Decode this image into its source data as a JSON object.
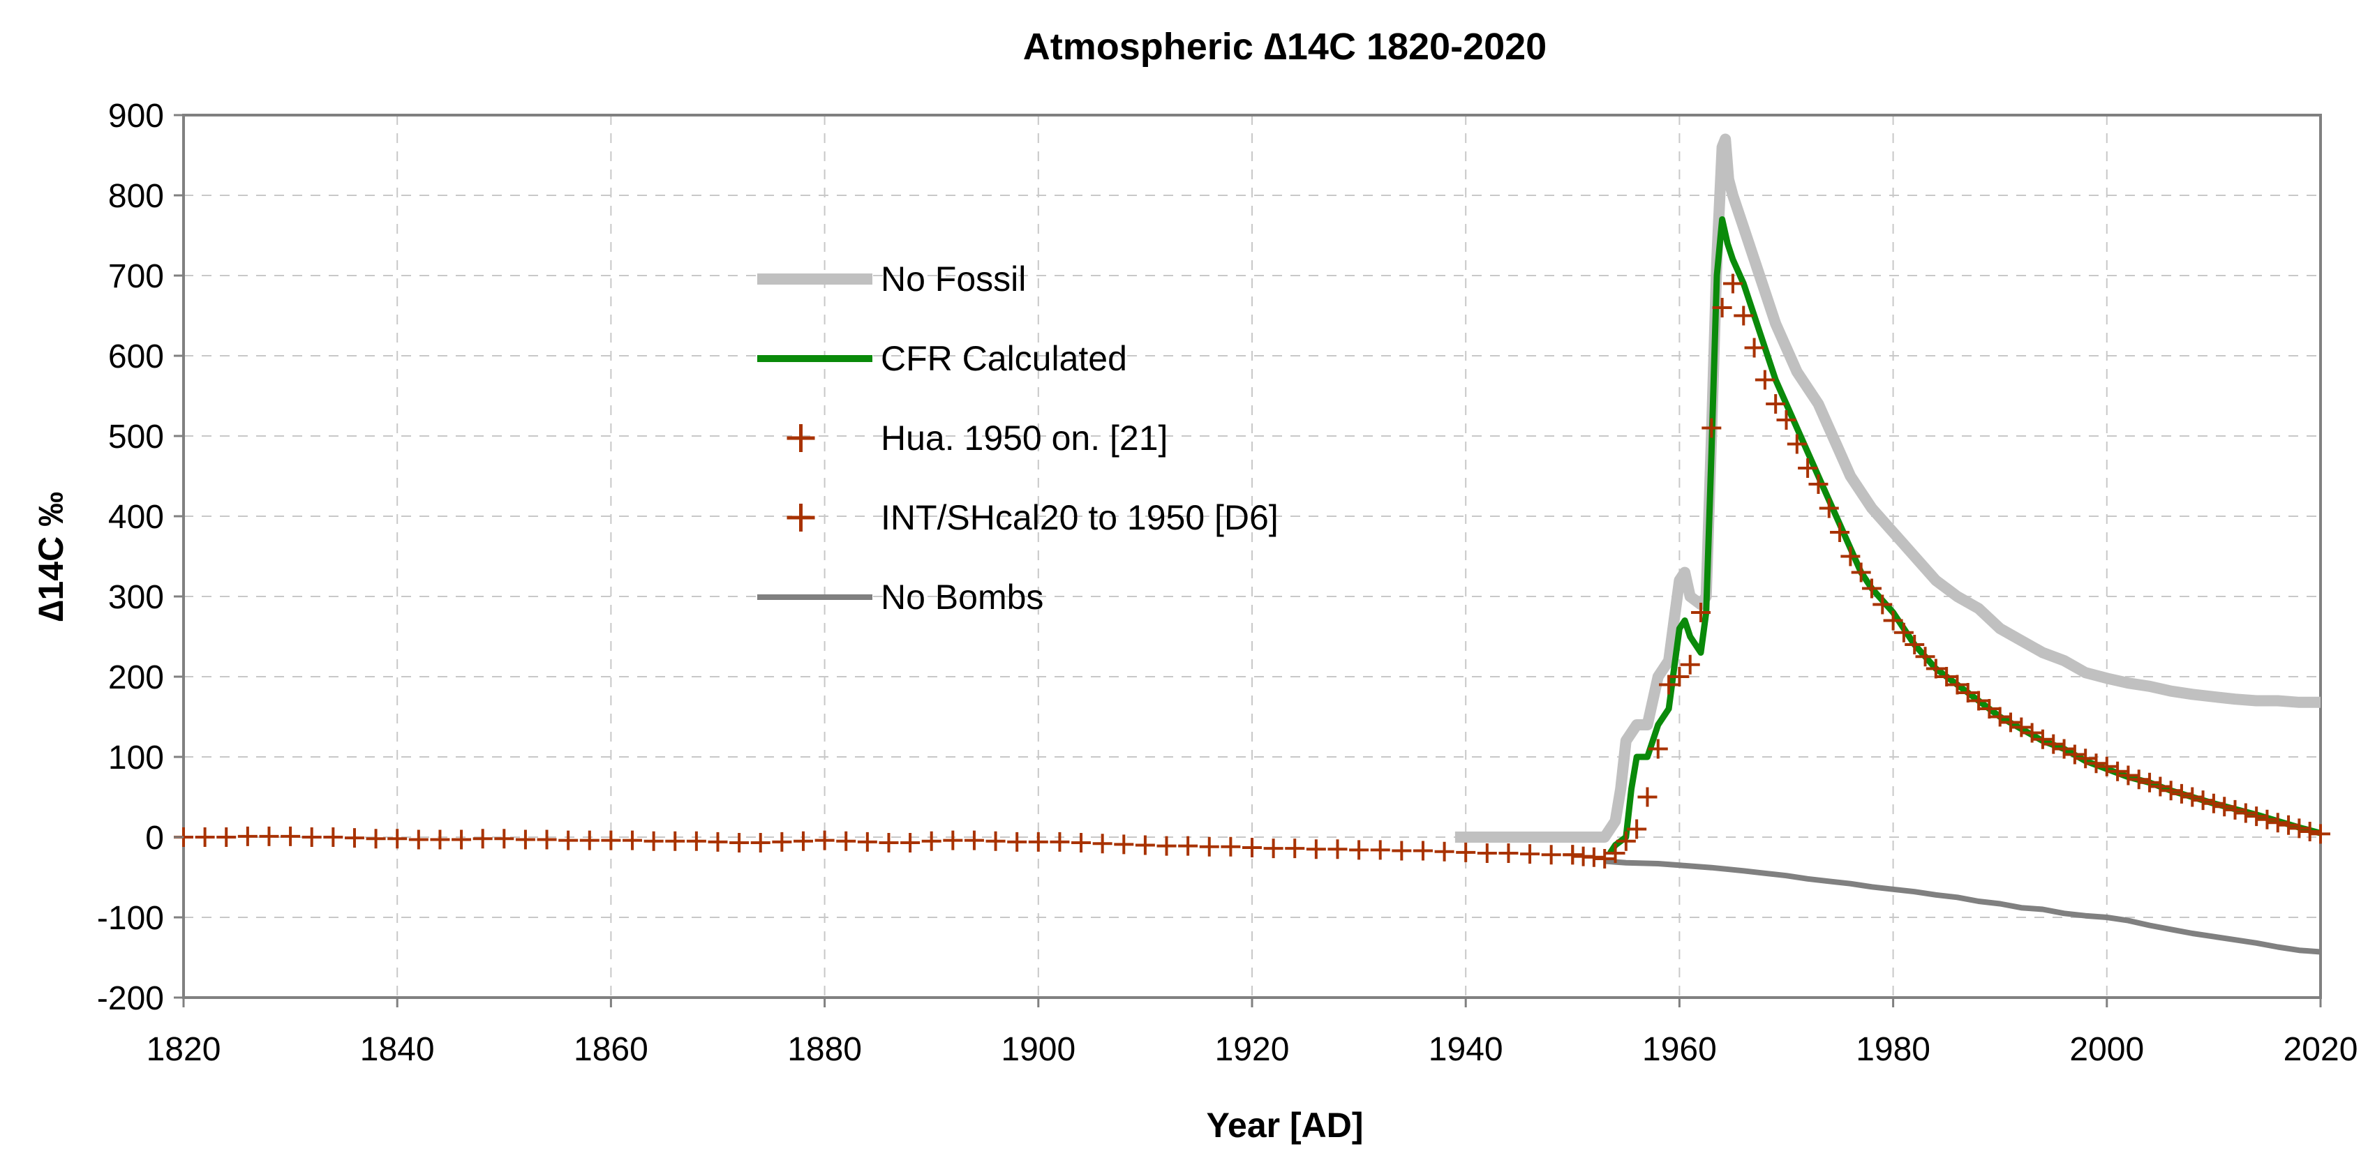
{
  "chart_data": {
    "type": "line",
    "title": "Atmospheric ∆14C 1820-2020",
    "xlabel": "Year [AD]",
    "ylabel": "∆14C ‰",
    "xlim": [
      1820,
      2020
    ],
    "ylim": [
      -200,
      900
    ],
    "x_ticks": [
      1820,
      1840,
      1860,
      1880,
      1900,
      1920,
      1940,
      1960,
      1980,
      2000,
      2020
    ],
    "y_ticks": [
      -200,
      -100,
      0,
      100,
      200,
      300,
      400,
      500,
      600,
      700,
      800,
      900
    ],
    "grid": "dashed",
    "legend_position": "upper-left-center",
    "series": [
      {
        "name": "No Fossil",
        "style": "line",
        "color": "#c0c0c0",
        "points": [
          [
            1939,
            0
          ],
          [
            1953,
            0
          ],
          [
            1954,
            20
          ],
          [
            1954.5,
            60
          ],
          [
            1955,
            120
          ],
          [
            1956,
            140
          ],
          [
            1957,
            140
          ],
          [
            1958,
            200
          ],
          [
            1959,
            220
          ],
          [
            1959.5,
            270
          ],
          [
            1960,
            320
          ],
          [
            1960.5,
            330
          ],
          [
            1961,
            300
          ],
          [
            1962,
            290
          ],
          [
            1962.5,
            300
          ],
          [
            1963,
            500
          ],
          [
            1963.5,
            720
          ],
          [
            1964,
            860
          ],
          [
            1964.3,
            870
          ],
          [
            1964.6,
            820
          ],
          [
            1965,
            800
          ],
          [
            1966,
            760
          ],
          [
            1967,
            720
          ],
          [
            1968,
            680
          ],
          [
            1969,
            640
          ],
          [
            1970,
            610
          ],
          [
            1971,
            580
          ],
          [
            1972,
            560
          ],
          [
            1973,
            540
          ],
          [
            1974,
            510
          ],
          [
            1975,
            480
          ],
          [
            1976,
            450
          ],
          [
            1977,
            430
          ],
          [
            1978,
            410
          ],
          [
            1980,
            380
          ],
          [
            1982,
            350
          ],
          [
            1984,
            320
          ],
          [
            1986,
            300
          ],
          [
            1988,
            285
          ],
          [
            1990,
            260
          ],
          [
            1992,
            245
          ],
          [
            1994,
            230
          ],
          [
            1996,
            220
          ],
          [
            1998,
            205
          ],
          [
            2000,
            198
          ],
          [
            2002,
            192
          ],
          [
            2004,
            188
          ],
          [
            2006,
            182
          ],
          [
            2008,
            178
          ],
          [
            2010,
            175
          ],
          [
            2012,
            172
          ],
          [
            2014,
            170
          ],
          [
            2016,
            170
          ],
          [
            2018,
            168
          ],
          [
            2020,
            168
          ]
        ]
      },
      {
        "name": "CFR Calculated",
        "style": "line",
        "color": "#0a8a0a",
        "points": [
          [
            1953.5,
            -20
          ],
          [
            1954,
            -10
          ],
          [
            1955,
            0
          ],
          [
            1955.5,
            60
          ],
          [
            1956,
            100
          ],
          [
            1957,
            100
          ],
          [
            1958,
            140
          ],
          [
            1959,
            160
          ],
          [
            1959.5,
            210
          ],
          [
            1960,
            260
          ],
          [
            1960.5,
            270
          ],
          [
            1961,
            250
          ],
          [
            1962,
            230
          ],
          [
            1962.5,
            280
          ],
          [
            1963,
            480
          ],
          [
            1963.5,
            700
          ],
          [
            1964,
            770
          ],
          [
            1964.5,
            740
          ],
          [
            1965,
            720
          ],
          [
            1966,
            690
          ],
          [
            1967,
            650
          ],
          [
            1968,
            610
          ],
          [
            1969,
            570
          ],
          [
            1970,
            540
          ],
          [
            1971,
            510
          ],
          [
            1972,
            480
          ],
          [
            1973,
            450
          ],
          [
            1974,
            420
          ],
          [
            1975,
            390
          ],
          [
            1976,
            360
          ],
          [
            1977,
            330
          ],
          [
            1978,
            310
          ],
          [
            1980,
            280
          ],
          [
            1982,
            240
          ],
          [
            1984,
            210
          ],
          [
            1986,
            190
          ],
          [
            1988,
            170
          ],
          [
            1990,
            150
          ],
          [
            1992,
            135
          ],
          [
            1994,
            120
          ],
          [
            1996,
            110
          ],
          [
            1998,
            95
          ],
          [
            2000,
            85
          ],
          [
            2002,
            75
          ],
          [
            2004,
            68
          ],
          [
            2006,
            58
          ],
          [
            2008,
            50
          ],
          [
            2010,
            42
          ],
          [
            2012,
            35
          ],
          [
            2014,
            28
          ],
          [
            2016,
            20
          ],
          [
            2018,
            12
          ],
          [
            2020,
            5
          ]
        ]
      },
      {
        "name": "Hua. 1950 on. [21]",
        "style": "markers",
        "marker": "+",
        "color": "#a83200",
        "points": [
          [
            1950,
            -22
          ],
          [
            1951,
            -24
          ],
          [
            1952,
            -25
          ],
          [
            1953,
            -27
          ],
          [
            1954,
            -20
          ],
          [
            1955,
            -5
          ],
          [
            1956,
            10
          ],
          [
            1957,
            50
          ],
          [
            1958,
            110
          ],
          [
            1959,
            190
          ],
          [
            1960,
            200
          ],
          [
            1961,
            215
          ],
          [
            1962,
            280
          ],
          [
            1963,
            510
          ],
          [
            1964,
            660
          ],
          [
            1965,
            690
          ],
          [
            1966,
            650
          ],
          [
            1967,
            610
          ],
          [
            1968,
            570
          ],
          [
            1969,
            540
          ],
          [
            1970,
            520
          ],
          [
            1971,
            490
          ],
          [
            1972,
            460
          ],
          [
            1973,
            440
          ],
          [
            1974,
            410
          ],
          [
            1975,
            380
          ],
          [
            1976,
            350
          ],
          [
            1977,
            330
          ],
          [
            1978,
            310
          ],
          [
            1979,
            290
          ],
          [
            1980,
            270
          ],
          [
            1981,
            255
          ],
          [
            1982,
            240
          ],
          [
            1983,
            225
          ],
          [
            1984,
            210
          ],
          [
            1985,
            200
          ],
          [
            1986,
            190
          ],
          [
            1987,
            180
          ],
          [
            1988,
            170
          ],
          [
            1989,
            160
          ],
          [
            1990,
            150
          ],
          [
            1991,
            143
          ],
          [
            1992,
            137
          ],
          [
            1993,
            130
          ],
          [
            1994,
            122
          ],
          [
            1995,
            116
          ],
          [
            1996,
            110
          ],
          [
            1997,
            103
          ],
          [
            1998,
            98
          ],
          [
            1999,
            92
          ],
          [
            2000,
            88
          ],
          [
            2001,
            82
          ],
          [
            2002,
            77
          ],
          [
            2003,
            72
          ],
          [
            2004,
            68
          ],
          [
            2005,
            63
          ],
          [
            2006,
            58
          ],
          [
            2007,
            54
          ],
          [
            2008,
            50
          ],
          [
            2009,
            46
          ],
          [
            2010,
            42
          ],
          [
            2011,
            38
          ],
          [
            2012,
            34
          ],
          [
            2013,
            30
          ],
          [
            2014,
            26
          ],
          [
            2015,
            22
          ],
          [
            2016,
            18
          ],
          [
            2017,
            15
          ],
          [
            2018,
            11
          ],
          [
            2019,
            7
          ],
          [
            2020,
            4
          ]
        ]
      },
      {
        "name": "INT/SHcal20 to 1950 [D6]",
        "style": "markers",
        "marker": "+",
        "color": "#a83200",
        "points": [
          [
            1820,
            0
          ],
          [
            1822,
            0
          ],
          [
            1824,
            0
          ],
          [
            1826,
            1
          ],
          [
            1828,
            1
          ],
          [
            1830,
            1
          ],
          [
            1832,
            0
          ],
          [
            1834,
            0
          ],
          [
            1836,
            -1
          ],
          [
            1838,
            -2
          ],
          [
            1840,
            -2
          ],
          [
            1842,
            -3
          ],
          [
            1844,
            -3
          ],
          [
            1846,
            -3
          ],
          [
            1848,
            -2
          ],
          [
            1850,
            -2
          ],
          [
            1852,
            -3
          ],
          [
            1854,
            -3
          ],
          [
            1856,
            -4
          ],
          [
            1858,
            -4
          ],
          [
            1860,
            -4
          ],
          [
            1862,
            -4
          ],
          [
            1864,
            -5
          ],
          [
            1866,
            -5
          ],
          [
            1868,
            -5
          ],
          [
            1870,
            -6
          ],
          [
            1872,
            -7
          ],
          [
            1874,
            -7
          ],
          [
            1876,
            -6
          ],
          [
            1878,
            -5
          ],
          [
            1880,
            -4
          ],
          [
            1882,
            -5
          ],
          [
            1884,
            -6
          ],
          [
            1886,
            -7
          ],
          [
            1888,
            -7
          ],
          [
            1890,
            -5
          ],
          [
            1892,
            -4
          ],
          [
            1894,
            -4
          ],
          [
            1896,
            -5
          ],
          [
            1898,
            -6
          ],
          [
            1900,
            -6
          ],
          [
            1902,
            -6
          ],
          [
            1904,
            -7
          ],
          [
            1906,
            -8
          ],
          [
            1908,
            -9
          ],
          [
            1910,
            -10
          ],
          [
            1912,
            -11
          ],
          [
            1914,
            -11
          ],
          [
            1916,
            -12
          ],
          [
            1918,
            -12
          ],
          [
            1920,
            -13
          ],
          [
            1922,
            -14
          ],
          [
            1924,
            -14
          ],
          [
            1926,
            -15
          ],
          [
            1928,
            -15
          ],
          [
            1930,
            -16
          ],
          [
            1932,
            -16
          ],
          [
            1934,
            -17
          ],
          [
            1936,
            -17
          ],
          [
            1938,
            -18
          ],
          [
            1940,
            -19
          ],
          [
            1942,
            -20
          ],
          [
            1944,
            -20
          ],
          [
            1946,
            -21
          ],
          [
            1948,
            -22
          ],
          [
            1950,
            -22
          ]
        ]
      },
      {
        "name": "No Bombs",
        "style": "line",
        "color": "#808080",
        "points": [
          [
            1953,
            -30
          ],
          [
            1955,
            -32
          ],
          [
            1958,
            -33
          ],
          [
            1960,
            -35
          ],
          [
            1963,
            -38
          ],
          [
            1966,
            -42
          ],
          [
            1968,
            -45
          ],
          [
            1970,
            -48
          ],
          [
            1972,
            -52
          ],
          [
            1974,
            -55
          ],
          [
            1976,
            -58
          ],
          [
            1978,
            -62
          ],
          [
            1980,
            -65
          ],
          [
            1982,
            -68
          ],
          [
            1984,
            -72
          ],
          [
            1986,
            -75
          ],
          [
            1988,
            -80
          ],
          [
            1990,
            -83
          ],
          [
            1992,
            -88
          ],
          [
            1994,
            -90
          ],
          [
            1996,
            -95
          ],
          [
            1998,
            -98
          ],
          [
            2000,
            -100
          ],
          [
            2002,
            -104
          ],
          [
            2004,
            -110
          ],
          [
            2006,
            -115
          ],
          [
            2008,
            -120
          ],
          [
            2010,
            -124
          ],
          [
            2012,
            -128
          ],
          [
            2014,
            -132
          ],
          [
            2016,
            -137
          ],
          [
            2018,
            -141
          ],
          [
            2020,
            -143
          ]
        ]
      }
    ],
    "legend": [
      {
        "label": "No Fossil",
        "symbol": "thick-line",
        "color": "#c0c0c0"
      },
      {
        "label": "CFR Calculated",
        "symbol": "line",
        "color": "#0a8a0a"
      },
      {
        "label": "Hua. 1950 on. [21]",
        "symbol": "plus",
        "color": "#a83200"
      },
      {
        "label": "INT/SHcal20 to 1950 [D6]",
        "symbol": "plus",
        "color": "#a83200"
      },
      {
        "label": "No Bombs",
        "symbol": "line",
        "color": "#808080"
      }
    ]
  }
}
